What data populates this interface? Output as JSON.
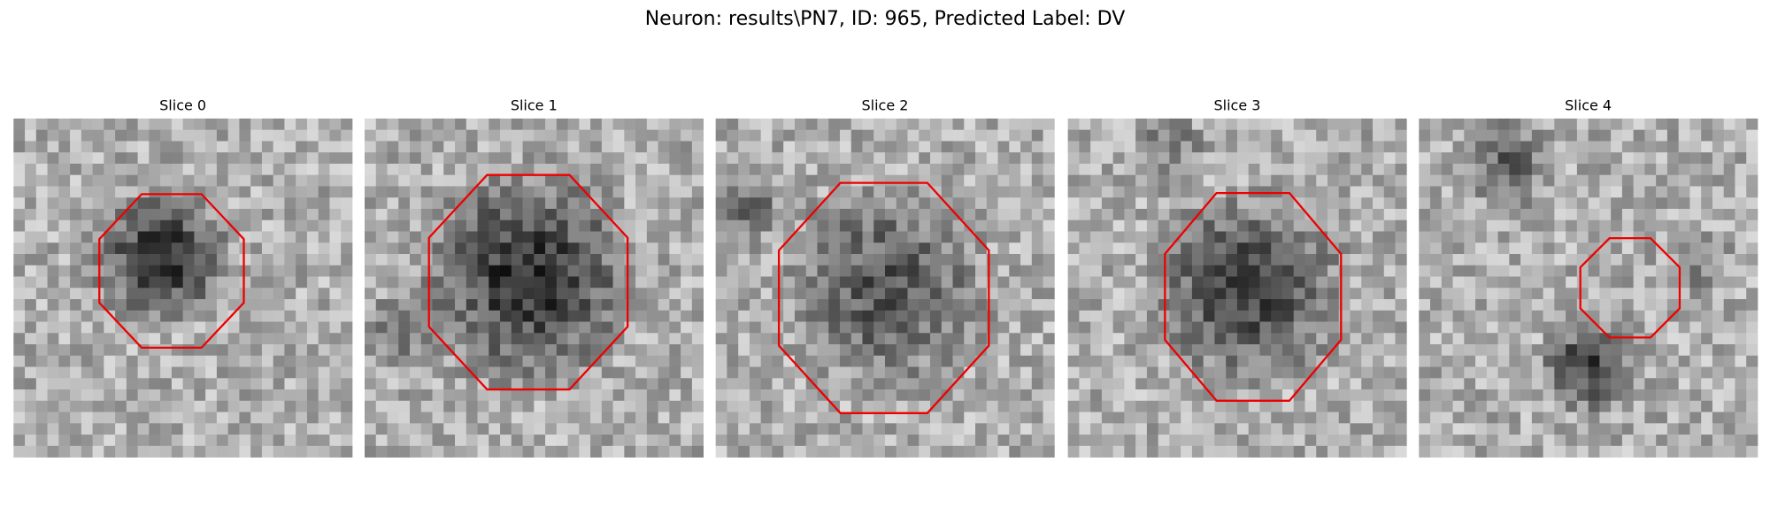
{
  "title": "Neuron: results\\PN7, ID: 965, Predicted Label: DV",
  "panels": [
    {
      "title": "Slice 0"
    },
    {
      "title": "Slice 1"
    },
    {
      "title": "Slice 2"
    },
    {
      "title": "Slice 3"
    },
    {
      "title": "Slice 4"
    }
  ]
}
